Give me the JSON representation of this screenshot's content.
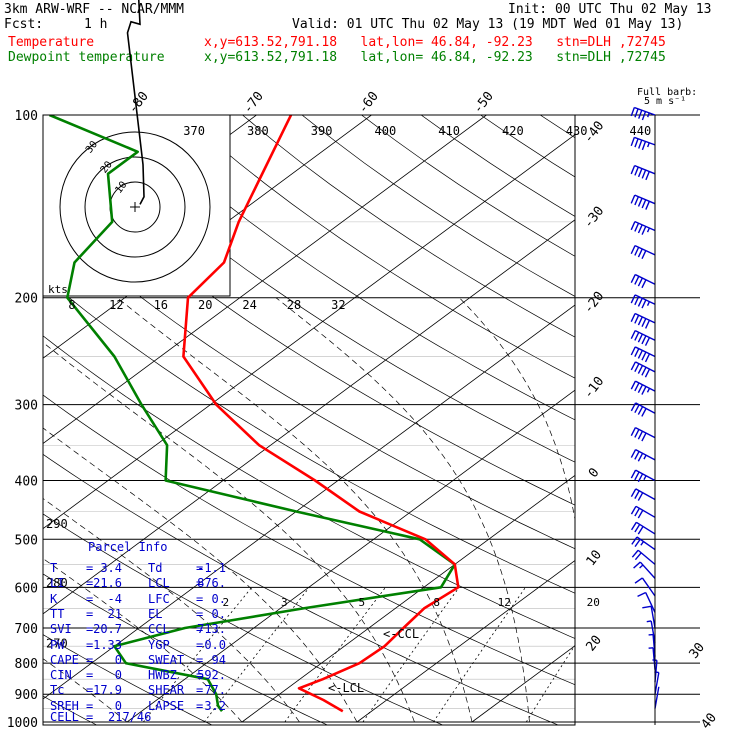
{
  "header": {
    "model": "3km ARW-WRF -- NCAR/MMM",
    "init": "Init: 00 UTC Thu 02 May 13",
    "fcst_label": "Fcst:",
    "fcst_value": "1 h",
    "valid": "Valid: 01 UTC Thu 02 May 13 (19 MDT Wed 01 May 13)",
    "temp_label": "Temperature",
    "temp_info": "x,y=613.52,791.18   lat,lon= 46.84, -92.23   stn=DLH ,72745",
    "dew_label": "Dewpoint temperature",
    "dew_info": "x,y=613.52,791.18   lat,lon= 46.84, -92.23   stn=DLH ,72745"
  },
  "barb_legend": {
    "line1": "Full barb:",
    "line2": "5 m s⁻¹"
  },
  "colors": {
    "temperature": "#ff0000",
    "dewpoint": "#008000",
    "barb": "#0000cc",
    "hodograph": "#000000"
  },
  "chart_data": {
    "type": "line",
    "chart_kind": "skew-T log-p",
    "y_axis": {
      "variable": "pressure",
      "units": "hPa",
      "scale": "log",
      "range": [
        1000,
        100
      ],
      "ticks": [
        100,
        200,
        300,
        400,
        500,
        600,
        700,
        800,
        900,
        1000
      ]
    },
    "isotherm_labels": [
      -80,
      -70,
      -60,
      -50,
      -40,
      -30,
      -20,
      -10,
      0,
      10,
      20,
      30,
      40
    ],
    "theta_labels_top": [
      370,
      380,
      390,
      400,
      410,
      420,
      430,
      440
    ],
    "theta_labels_left": [
      290,
      280,
      270
    ],
    "mixing_ratio_labels": [
      2,
      3,
      5,
      8,
      12,
      20
    ],
    "series": [
      {
        "name": "Temperature",
        "pressure": [
          100,
          150,
          175,
          200,
          250,
          300,
          350,
          400,
          450,
          500,
          550,
          600,
          650,
          700,
          750,
          800,
          850,
          880,
          920,
          960
        ],
        "values": [
          -67,
          -59,
          -55.5,
          -54.5,
          -48,
          -39.5,
          -31,
          -22,
          -14.5,
          -5.5,
          0,
          3,
          2.5,
          3,
          3.5,
          3.3,
          2,
          1,
          4.5,
          7.5
        ]
      },
      {
        "name": "Dewpoint temperature",
        "pressure": [
          100,
          115,
          125,
          150,
          175,
          200,
          250,
          300,
          350,
          400,
          450,
          500,
          550,
          600,
          650,
          700,
          750,
          800,
          850,
          900,
          940,
          960
        ],
        "values": [
          -88,
          -76,
          -76,
          -70,
          -68.5,
          -65,
          -54,
          -46,
          -39,
          -35,
          -20,
          -6,
          0,
          1.5,
          -8,
          -16,
          -20,
          -17,
          -8,
          -5.5,
          -4,
          -3
        ]
      }
    ],
    "hodograph": {
      "ring_labels": [
        10,
        20,
        30
      ],
      "trace": [
        [
          1.0,
          0.3
        ],
        [
          1.8,
          1.2
        ],
        [
          1.6,
          5.0
        ],
        [
          0.5,
          10.5
        ],
        [
          -0.5,
          15.5
        ],
        [
          -1.5,
          20.5
        ],
        [
          -0.8,
          21.8
        ],
        [
          1.0,
          21.5
        ],
        [
          0.7,
          25.0
        ],
        [
          0.5,
          26.0
        ]
      ]
    },
    "wind_barbs": [
      {
        "p": 100,
        "dir": 290,
        "spd": 23
      },
      {
        "p": 112,
        "dir": 290,
        "spd": 24
      },
      {
        "p": 125,
        "dir": 292,
        "spd": 25
      },
      {
        "p": 140,
        "dir": 293,
        "spd": 26
      },
      {
        "p": 155,
        "dir": 294,
        "spd": 24
      },
      {
        "p": 170,
        "dir": 295,
        "spd": 22
      },
      {
        "p": 190,
        "dir": 296,
        "spd": 22
      },
      {
        "p": 205,
        "dir": 295,
        "spd": 24
      },
      {
        "p": 220,
        "dir": 295,
        "spd": 26
      },
      {
        "p": 235,
        "dir": 296,
        "spd": 27
      },
      {
        "p": 250,
        "dir": 296,
        "spd": 26
      },
      {
        "p": 265,
        "dir": 297,
        "spd": 25
      },
      {
        "p": 285,
        "dir": 297,
        "spd": 24
      },
      {
        "p": 310,
        "dir": 298,
        "spd": 22
      },
      {
        "p": 340,
        "dir": 297,
        "spd": 21
      },
      {
        "p": 370,
        "dir": 298,
        "spd": 19
      },
      {
        "p": 400,
        "dir": 298,
        "spd": 18
      },
      {
        "p": 430,
        "dir": 299,
        "spd": 17
      },
      {
        "p": 460,
        "dir": 300,
        "spd": 16
      },
      {
        "p": 490,
        "dir": 302,
        "spd": 15
      },
      {
        "p": 520,
        "dir": 305,
        "spd": 13
      },
      {
        "p": 550,
        "dir": 310,
        "spd": 11
      },
      {
        "p": 580,
        "dir": 318,
        "spd": 9
      },
      {
        "p": 620,
        "dir": 325,
        "spd": 7
      },
      {
        "p": 660,
        "dir": 335,
        "spd": 6
      },
      {
        "p": 700,
        "dir": 350,
        "spd": 5
      },
      {
        "p": 740,
        "dir": 350,
        "spd": 4
      },
      {
        "p": 780,
        "dir": 355,
        "spd": 3
      },
      {
        "p": 820,
        "dir": 355,
        "spd": 3
      },
      {
        "p": 860,
        "dir": 5,
        "spd": 3
      },
      {
        "p": 900,
        "dir": 10,
        "spd": 3
      },
      {
        "p": 950,
        "dir": 10,
        "spd": 2
      }
    ],
    "annotations": [
      "<-CCL",
      "<-LCL"
    ]
  },
  "kts_label": "kts",
  "parcel_info": {
    "title": "Parcel Info",
    "rows": [
      [
        "T",
        "3.4",
        "Td",
        "-1.1"
      ],
      [
        "LI",
        "21.6",
        "LCL",
        "876."
      ],
      [
        "K",
        "-4",
        "LFC",
        "0."
      ],
      [
        "TT",
        "21",
        "EL",
        "0."
      ],
      [
        "SVI",
        "20.7",
        "CCL",
        "713."
      ],
      [
        "PW",
        "1.33",
        "YGP",
        "0.0"
      ],
      [
        "CAPE",
        "0",
        "SWEAT",
        "94"
      ],
      [
        "CIN",
        "0",
        "HWBZ",
        "592."
      ],
      [
        "Tc",
        "17.9",
        "SHEAR",
        "77."
      ],
      [
        "SREH",
        "0",
        "LAPSE",
        "3.2"
      ]
    ],
    "cell_label": "CELL",
    "cell_value": "217/46"
  }
}
